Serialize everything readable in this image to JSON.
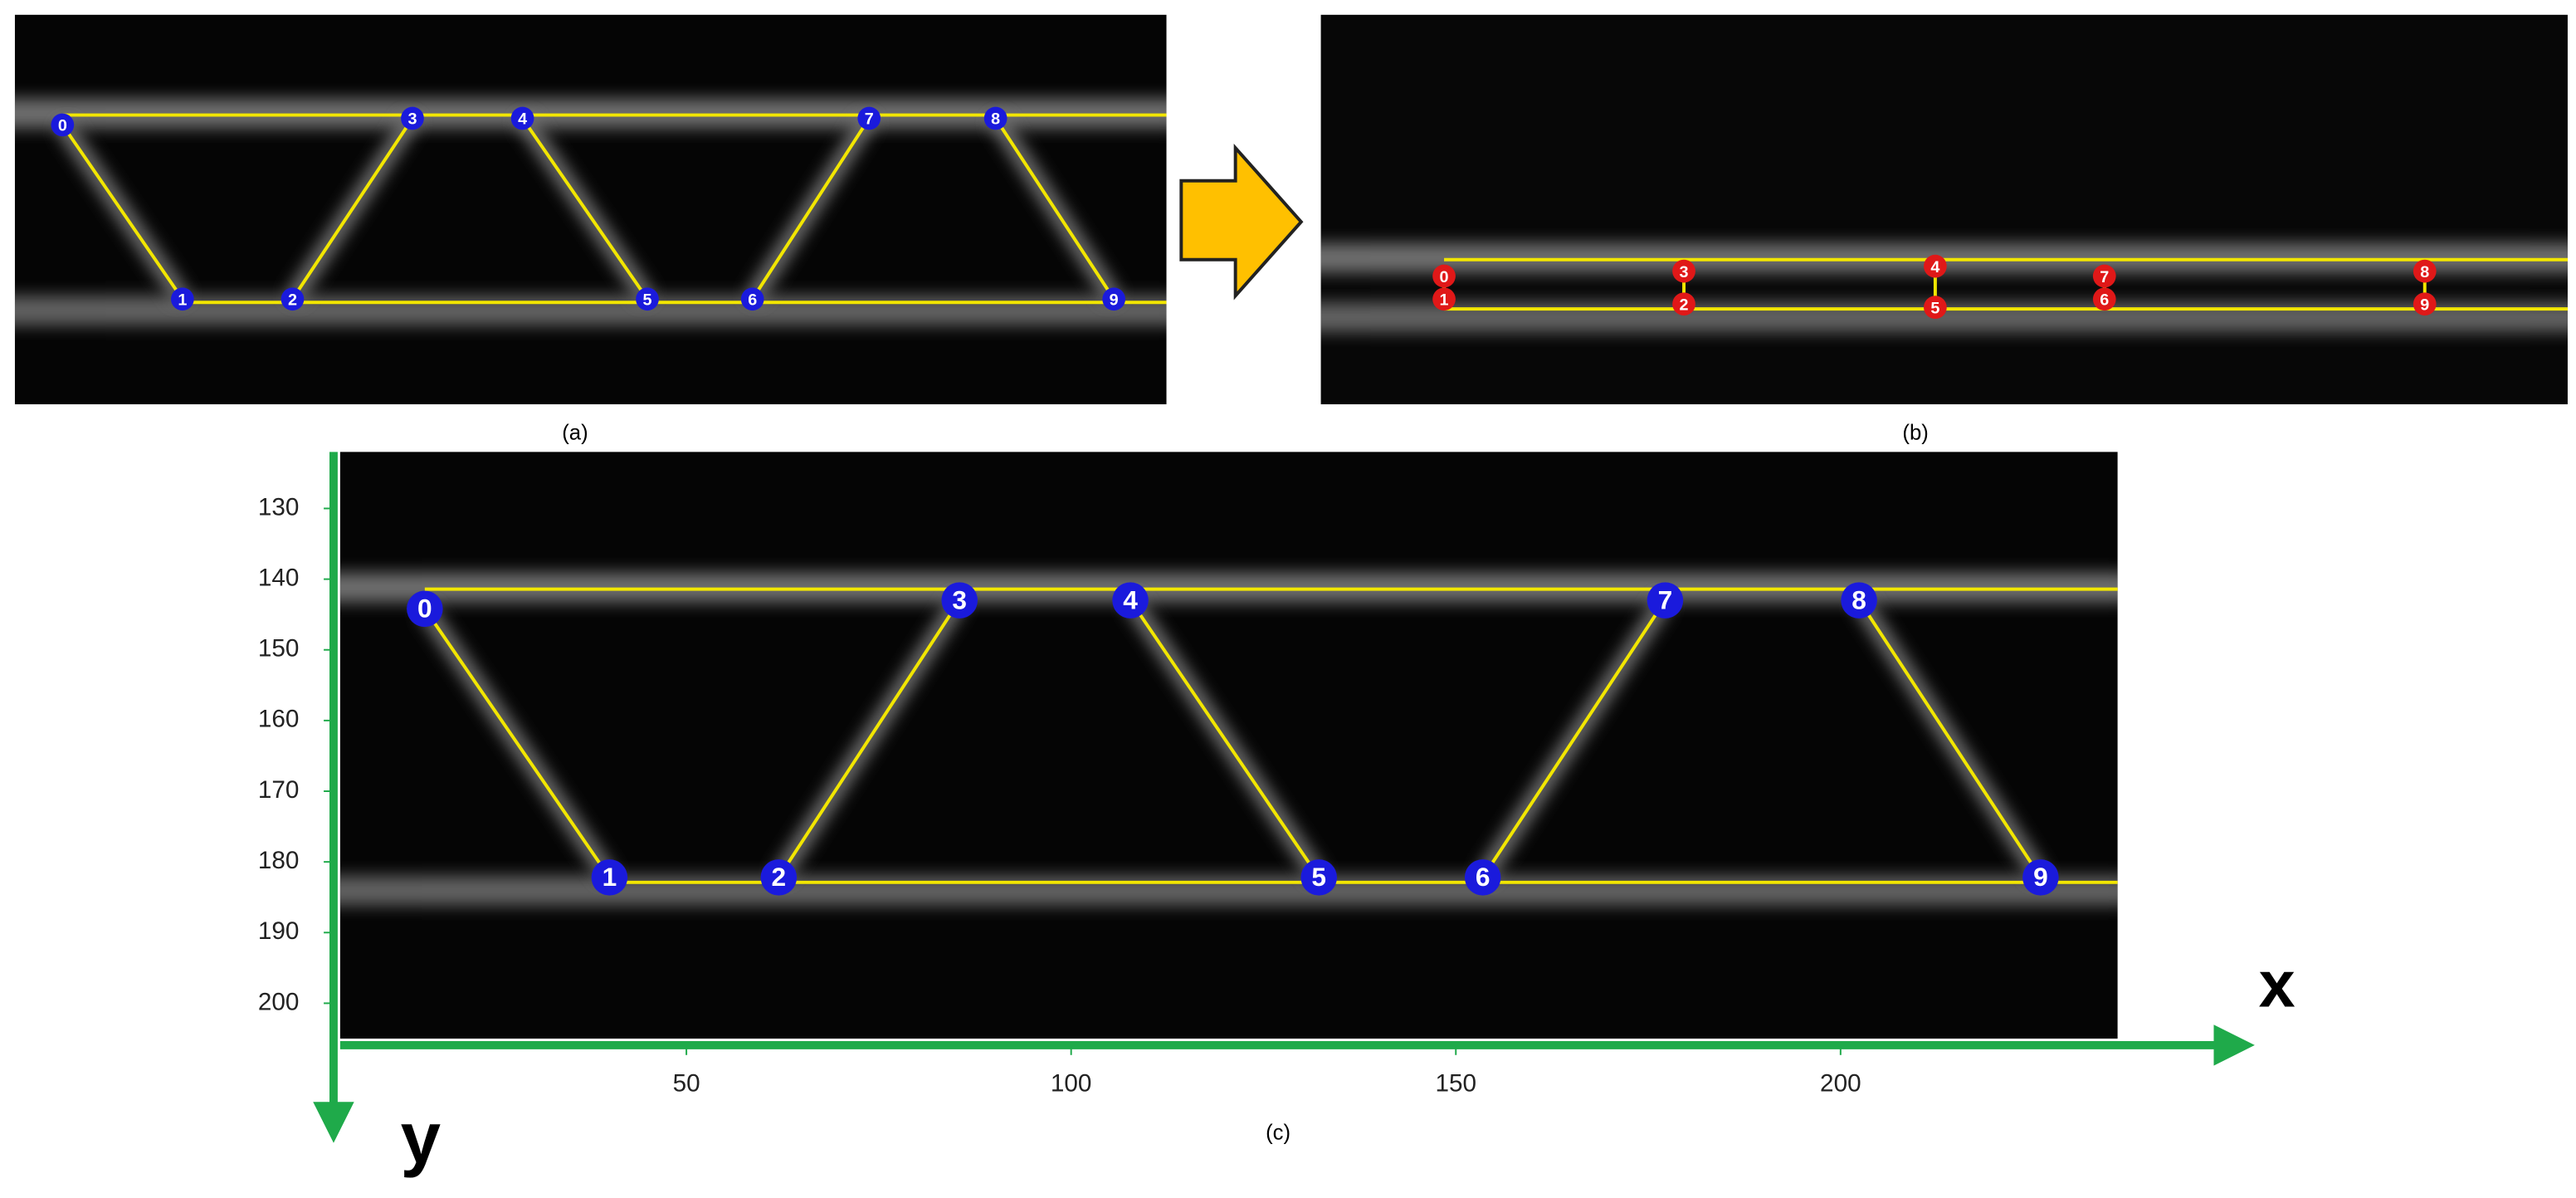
{
  "panels": [
    {
      "caption": "(a)",
      "nodes": [
        "0",
        "1",
        "2",
        "3",
        "4",
        "5",
        "6",
        "7",
        "8",
        "9"
      ]
    },
    {
      "caption": "(b)",
      "nodes": [
        "0",
        "1",
        "2",
        "3",
        "4",
        "5",
        "6",
        "7",
        "8",
        "9"
      ]
    }
  ],
  "chart_data": {
    "type": "scatter",
    "caption": "(c)",
    "x_label": "x",
    "y_label": "y",
    "xlim": [
      5,
      236
    ],
    "ylim": [
      122,
      205
    ],
    "xticks": [
      50,
      100,
      150,
      200
    ],
    "yticks": [
      130,
      140,
      150,
      160,
      170,
      180,
      190,
      200
    ],
    "point_labels": [
      "0",
      "1",
      "2",
      "3",
      "4",
      "5",
      "6",
      "7",
      "8",
      "9"
    ],
    "x": [
      16,
      40,
      62,
      85.5,
      107.7,
      132.2,
      153.5,
      177.2,
      202.4,
      226
    ],
    "y": [
      144.2,
      182.2,
      182.2,
      143,
      143,
      182.2,
      182.2,
      143,
      143,
      182.2
    ]
  }
}
